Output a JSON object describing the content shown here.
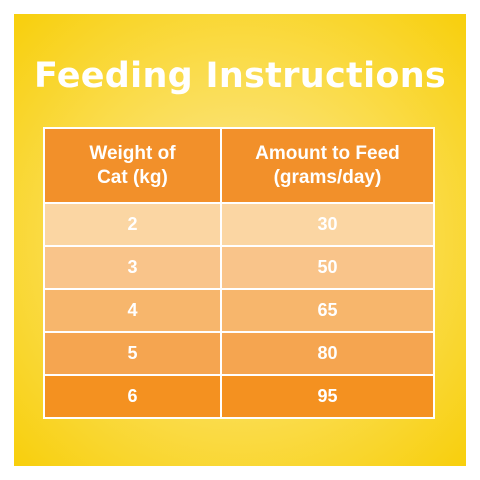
{
  "title": "Feeding Instructions",
  "table": {
    "headers": {
      "weight": [
        "Weight of",
        "Cat (kg)"
      ],
      "amount": [
        "Amount to Feed",
        "(grams/day)"
      ]
    },
    "rows": [
      {
        "weight": "2",
        "amount": "30"
      },
      {
        "weight": "3",
        "amount": "50"
      },
      {
        "weight": "4",
        "amount": "65"
      },
      {
        "weight": "5",
        "amount": "80"
      },
      {
        "weight": "6",
        "amount": "95"
      }
    ]
  },
  "colors": {
    "background": "#f8cf0c",
    "header": "#f2902a",
    "row_1": "#fbd6a3",
    "row_2": "#f9c48a",
    "row_3": "#f7b66c",
    "row_4": "#f5a550",
    "row_5": "#f49120",
    "text": "#ffffff"
  }
}
